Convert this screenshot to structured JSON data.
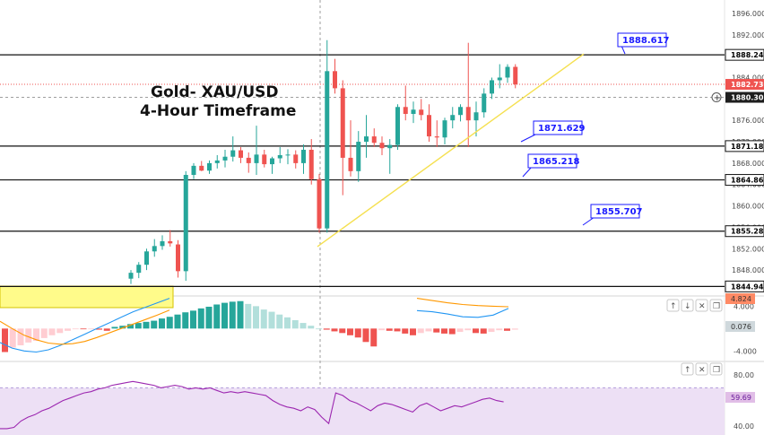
{
  "chart_data": [
    {
      "type": "candlestick",
      "title": "Gold- XAU/USD\n4-Hour Timeframe",
      "title_lines": [
        "Gold- XAU/USD",
        "4-Hour Timeframe"
      ],
      "y_ticks": [
        1848.0,
        1852.0,
        1856.0,
        1860.0,
        1864.0,
        1868.0,
        1872.0,
        1876.0,
        1880.0,
        1884.0,
        1888.0,
        1892.0,
        1896.0
      ],
      "y_tick_labels": [
        "1848.000",
        "1852.000",
        "1856.000",
        "1860.000",
        "1864.000",
        "1868.000",
        "1872.000",
        "1876.000",
        "1880.000",
        "1884.000",
        "1888.000",
        "1892.000",
        "1896.000"
      ],
      "ylim": [
        1843.5,
        1898.5
      ],
      "up_color": "#26a69a",
      "down_color": "#ef5350",
      "candles": [
        {
          "o": 1846.4,
          "h": 1848.0,
          "l": 1845.4,
          "c": 1847.5
        },
        {
          "o": 1847.5,
          "h": 1849.5,
          "l": 1846.5,
          "c": 1849.0
        },
        {
          "o": 1849.0,
          "h": 1852.0,
          "l": 1848.0,
          "c": 1851.5
        },
        {
          "o": 1851.5,
          "h": 1853.8,
          "l": 1850.5,
          "c": 1852.5
        },
        {
          "o": 1852.5,
          "h": 1854.5,
          "l": 1851.8,
          "c": 1853.4
        },
        {
          "o": 1853.4,
          "h": 1855.5,
          "l": 1852.4,
          "c": 1853.0
        },
        {
          "o": 1852.8,
          "h": 1853.6,
          "l": 1846.6,
          "c": 1847.8
        },
        {
          "o": 1847.8,
          "h": 1866.5,
          "l": 1846.0,
          "c": 1865.8
        },
        {
          "o": 1865.8,
          "h": 1868.0,
          "l": 1865.0,
          "c": 1867.5
        },
        {
          "o": 1867.5,
          "h": 1868.4,
          "l": 1866.5,
          "c": 1866.6
        },
        {
          "o": 1866.6,
          "h": 1868.5,
          "l": 1866.0,
          "c": 1868.0
        },
        {
          "o": 1868.0,
          "h": 1869.5,
          "l": 1867.0,
          "c": 1868.5
        },
        {
          "o": 1868.5,
          "h": 1870.5,
          "l": 1867.2,
          "c": 1869.2
        },
        {
          "o": 1869.2,
          "h": 1873.0,
          "l": 1868.3,
          "c": 1870.4
        },
        {
          "o": 1870.4,
          "h": 1871.0,
          "l": 1868.0,
          "c": 1869.0
        },
        {
          "o": 1869.0,
          "h": 1870.0,
          "l": 1866.2,
          "c": 1868.0
        },
        {
          "o": 1868.0,
          "h": 1875.0,
          "l": 1865.8,
          "c": 1869.6
        },
        {
          "o": 1869.6,
          "h": 1870.5,
          "l": 1867.2,
          "c": 1867.8
        },
        {
          "o": 1867.8,
          "h": 1869.2,
          "l": 1866.0,
          "c": 1868.9
        },
        {
          "o": 1868.9,
          "h": 1871.0,
          "l": 1868.0,
          "c": 1869.5
        },
        {
          "o": 1869.5,
          "h": 1870.6,
          "l": 1867.8,
          "c": 1869.6
        },
        {
          "o": 1869.6,
          "h": 1870.4,
          "l": 1867.0,
          "c": 1868.0
        },
        {
          "o": 1868.0,
          "h": 1871.5,
          "l": 1866.0,
          "c": 1870.5
        },
        {
          "o": 1870.5,
          "h": 1872.5,
          "l": 1864.0,
          "c": 1865.0
        },
        {
          "o": 1865.0,
          "h": 1866.0,
          "l": 1855.0,
          "c": 1855.8
        },
        {
          "o": 1855.8,
          "h": 1891.0,
          "l": 1855.0,
          "c": 1885.2
        },
        {
          "o": 1885.2,
          "h": 1887.5,
          "l": 1881.0,
          "c": 1882.0
        },
        {
          "o": 1882.0,
          "h": 1883.5,
          "l": 1862.0,
          "c": 1869.0
        },
        {
          "o": 1869.0,
          "h": 1876.0,
          "l": 1865.5,
          "c": 1866.5
        },
        {
          "o": 1866.5,
          "h": 1874.0,
          "l": 1864.5,
          "c": 1872.0
        },
        {
          "o": 1872.0,
          "h": 1877.0,
          "l": 1869.0,
          "c": 1873.0
        },
        {
          "o": 1873.0,
          "h": 1874.5,
          "l": 1871.0,
          "c": 1871.8
        },
        {
          "o": 1871.8,
          "h": 1873.0,
          "l": 1869.5,
          "c": 1870.8
        },
        {
          "o": 1870.8,
          "h": 1872.5,
          "l": 1866.0,
          "c": 1871.4
        },
        {
          "o": 1871.4,
          "h": 1879.0,
          "l": 1870.5,
          "c": 1878.5
        },
        {
          "o": 1878.5,
          "h": 1882.5,
          "l": 1876.0,
          "c": 1877.2
        },
        {
          "o": 1877.2,
          "h": 1879.5,
          "l": 1875.5,
          "c": 1878.0
        },
        {
          "o": 1878.0,
          "h": 1880.0,
          "l": 1876.0,
          "c": 1877.0
        },
        {
          "o": 1877.0,
          "h": 1879.0,
          "l": 1872.0,
          "c": 1873.0
        },
        {
          "o": 1873.0,
          "h": 1876.0,
          "l": 1871.0,
          "c": 1872.8
        },
        {
          "o": 1872.8,
          "h": 1876.5,
          "l": 1871.5,
          "c": 1876.0
        },
        {
          "o": 1876.0,
          "h": 1878.5,
          "l": 1874.5,
          "c": 1877.0
        },
        {
          "o": 1877.0,
          "h": 1879.0,
          "l": 1875.8,
          "c": 1878.5
        },
        {
          "o": 1878.5,
          "h": 1890.5,
          "l": 1871.0,
          "c": 1876.0
        },
        {
          "o": 1876.0,
          "h": 1879.5,
          "l": 1873.0,
          "c": 1877.5
        },
        {
          "o": 1877.5,
          "h": 1882.0,
          "l": 1876.5,
          "c": 1881.0
        },
        {
          "o": 1881.0,
          "h": 1884.0,
          "l": 1880.0,
          "c": 1883.5
        },
        {
          "o": 1883.5,
          "h": 1886.5,
          "l": 1882.0,
          "c": 1884.0
        },
        {
          "o": 1884.0,
          "h": 1886.5,
          "l": 1883.0,
          "c": 1886.0
        },
        {
          "o": 1886.0,
          "h": 1886.5,
          "l": 1882.0,
          "c": 1882.73
        }
      ],
      "horizontal_levels": [
        {
          "value": 1888.246,
          "label": "1888.246"
        },
        {
          "value": 1871.187,
          "label": "1871.187"
        },
        {
          "value": 1864.868,
          "label": "1864.868"
        },
        {
          "value": 1855.284,
          "label": "1855.284"
        },
        {
          "value": 1844.949,
          "label": "1844.949"
        }
      ],
      "current_price": {
        "value": 1882.73,
        "label": "1882.730",
        "color": "#ef5350"
      },
      "crosshair_price": {
        "value": 1880.301,
        "label": "1880.301"
      },
      "callouts": [
        {
          "label": "1888.617",
          "value": 1888.617
        },
        {
          "label": "1871.629",
          "value": 1871.629
        },
        {
          "label": "1865.218",
          "value": 1865.218
        },
        {
          "label": "1855.707",
          "value": 1855.707
        }
      ],
      "trendline": {
        "from": {
          "candle": 24,
          "value": 1852.4
        },
        "to": {
          "candle": 60,
          "value": 1888.4
        },
        "color": "#f5e050"
      },
      "highlight_zone": {
        "y_from": 1845.0,
        "y_to": 1843.0,
        "color": "#fffb8a"
      }
    },
    {
      "type": "macd",
      "y_tick_labels": [
        "4.000",
        "-4.000"
      ],
      "y_ticks": [
        4.0,
        -4.0
      ],
      "ylim": [
        -5.4,
        5.5
      ],
      "readouts": [
        {
          "label": "4.824",
          "color": "#ff8a65"
        },
        {
          "label": "0.076",
          "color": "#cfd8dc"
        }
      ],
      "histogram": [
        -4.2,
        -3.4,
        -3.0,
        -2.5,
        -2.2,
        -1.7,
        -1.2,
        -0.8,
        -0.4,
        -0.1,
        -0.1,
        -0.05,
        -0.2,
        -0.4,
        0.3,
        0.5,
        0.8,
        1.0,
        1.2,
        1.4,
        1.8,
        2.1,
        2.5,
        2.9,
        3.2,
        3.6,
        3.9,
        4.3,
        4.6,
        4.8,
        4.9,
        4.4,
        4.0,
        3.4,
        3.0,
        2.5,
        2.0,
        1.5,
        1.0,
        0.5,
        0.0,
        -0.2,
        -0.5,
        -0.8,
        -1.2,
        -1.6,
        -2.4,
        -3.2,
        -0.3,
        -0.4,
        -0.5,
        -0.9,
        -1.2,
        -0.8,
        -0.5,
        -0.7,
        -0.9,
        -1.0,
        -0.6,
        -0.3,
        -0.8,
        -0.9,
        -0.6,
        -0.3,
        -0.4,
        -0.2,
        -0.1,
        0.3,
        0.5
      ],
      "macd_line": [
        -2.5,
        -3.5,
        -4.0,
        -4.2,
        -3.8,
        -3.0,
        -2.0,
        -1.0,
        0.0,
        1.0,
        2.0,
        3.0,
        3.8,
        4.6,
        5.4
      ],
      "signal_line": [
        1.3,
        0.0,
        -1.2,
        -2.0,
        -2.6,
        -2.8,
        -2.7,
        -2.3,
        -1.6,
        -0.8,
        0.0,
        0.8,
        1.6,
        2.4,
        3.3
      ],
      "upper_lines": {
        "macd": [
          3.2,
          3.0,
          2.6,
          2.1,
          2.0,
          2.4,
          3.6
        ],
        "signal": [
          5.4,
          5.0,
          4.6,
          4.3,
          4.1,
          4.0,
          3.9
        ]
      }
    },
    {
      "type": "line",
      "name": "rsi",
      "y_tick_labels": [
        "80.00",
        "40.00"
      ],
      "y_ticks": [
        80,
        40
      ],
      "ylim": [
        33,
        90
      ],
      "band": [
        30,
        70
      ],
      "readout": {
        "label": "59.69",
        "color": "#9c27b0"
      },
      "values": [
        38,
        38,
        39,
        44,
        47,
        49,
        52,
        54,
        57,
        60,
        62,
        64,
        66,
        67,
        69,
        70,
        72,
        73,
        74,
        75,
        74,
        73,
        72,
        70,
        71,
        72,
        71,
        69,
        70,
        69,
        70,
        68,
        66,
        67,
        66,
        67,
        66,
        65,
        64,
        60,
        57,
        55,
        54,
        52,
        55,
        53,
        47,
        42,
        66,
        64,
        60,
        58,
        55,
        52,
        56,
        58,
        57,
        55,
        53,
        51,
        56,
        58,
        55,
        52,
        54,
        56,
        55,
        57,
        59,
        61,
        62,
        60,
        59
      ]
    }
  ],
  "toolbar": {
    "macd_buttons": [
      "↑",
      "↓",
      "✕",
      "❒"
    ],
    "rsi_buttons": [
      "↑",
      "✕",
      "❒"
    ]
  }
}
